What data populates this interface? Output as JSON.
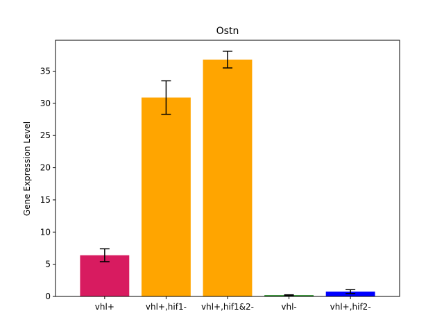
{
  "chart_data": {
    "type": "bar",
    "title": "Ostn",
    "xlabel": "",
    "ylabel": "Gene Expression Level",
    "categories": [
      "vhl+",
      "vhl+,hif1-",
      "vhl+,hif1&2-",
      "vhl-",
      "vhl+,hif2-"
    ],
    "values": [
      6.4,
      30.9,
      36.8,
      0.2,
      0.75
    ],
    "errors": [
      1.0,
      2.6,
      1.3,
      0.05,
      0.3
    ],
    "colors": [
      "#d81b60",
      "#ffa500",
      "#ffa500",
      "#228b22",
      "#0000ff"
    ],
    "ylim": [
      0,
      39.8
    ],
    "yticks": [
      0,
      5,
      10,
      15,
      20,
      25,
      30,
      35
    ],
    "grid": false,
    "legend": "none"
  }
}
